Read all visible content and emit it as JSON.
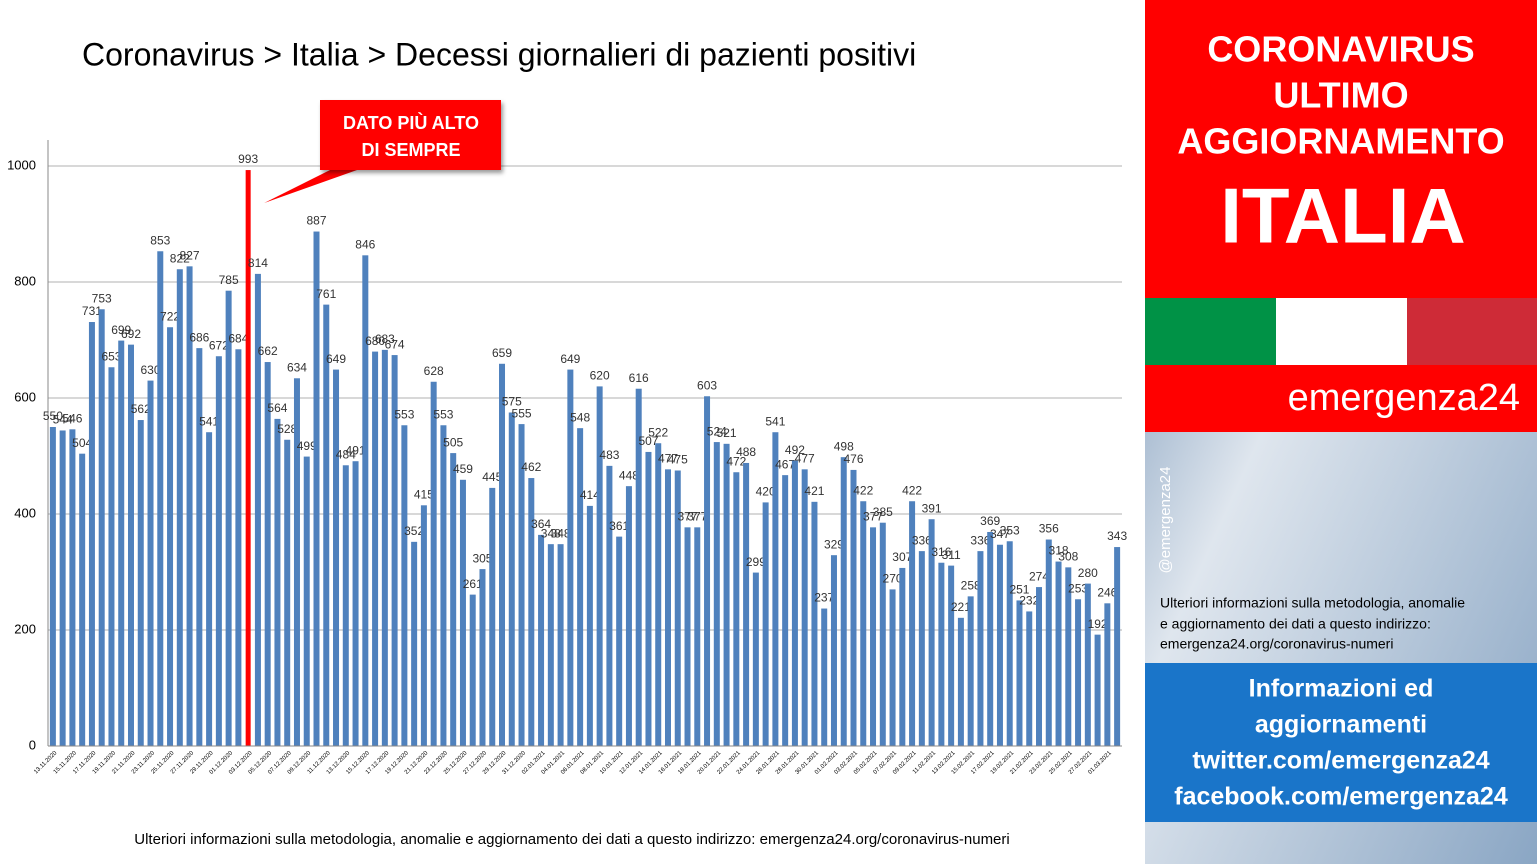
{
  "chart_data": {
    "type": "bar",
    "title": "Coronavirus > Italia > Decessi giornalieri di pazienti positivi",
    "categories": [
      "13.11.2020",
      null,
      "15.11.2020",
      null,
      "17.11.2020",
      null,
      "19.11.2020",
      null,
      "21.11.2020",
      null,
      "23.11.2020",
      null,
      "25.11.2020",
      null,
      "27.11.2020",
      null,
      "29.11.2020",
      null,
      "01.12.2020",
      null,
      "03.12.2020",
      null,
      "05.12.2020",
      null,
      "07.12.2020",
      null,
      "09.12.2020",
      null,
      "11.12.2020",
      null,
      "13.12.2020",
      null,
      "15.12.2020",
      null,
      "17.12.2020",
      null,
      "19.12.2020",
      null,
      "21.12.2020",
      null,
      "23.12.2020",
      null,
      "25.12.2020",
      null,
      "27.12.2020",
      null,
      "29.12.2020",
      null,
      "31.12.2020",
      null,
      "02.01.2021",
      null,
      "04.01.2021",
      null,
      "06.01.2021",
      null,
      "08.01.2021",
      null,
      "10.01.2021",
      null,
      "12.01.2021",
      null,
      "14.01.2021",
      null,
      "16.01.2021",
      null,
      "18.01.2021",
      null,
      "20.01.2021",
      null,
      "22.01.2021",
      null,
      "24.01.2021",
      null,
      "26.01.2021",
      null,
      "28.01.2021",
      null,
      "30.01.2021",
      null,
      "01.02.2021",
      null,
      "03.02.2021",
      null,
      "05.02.2021",
      null,
      "07.02.2021",
      null,
      "09.02.2021",
      null,
      "11.02.2021",
      null,
      "13.02.2021",
      null,
      "15.02.2021",
      null,
      "17.02.2021",
      null,
      "19.02.2021",
      null,
      "21.02.2021",
      null,
      "23.02.2021",
      null,
      "25.02.2021",
      null,
      "27.02.2021",
      null,
      "01.03.2021",
      null
    ],
    "values": [
      550,
      544,
      546,
      504,
      731,
      753,
      653,
      699,
      692,
      562,
      630,
      853,
      722,
      822,
      827,
      686,
      541,
      672,
      785,
      684,
      993,
      814,
      662,
      564,
      528,
      634,
      499,
      887,
      761,
      649,
      484,
      491,
      846,
      680,
      683,
      674,
      553,
      352,
      415,
      628,
      553,
      505,
      459,
      261,
      305,
      445,
      659,
      575,
      555,
      462,
      364,
      348,
      348,
      649,
      548,
      414,
      620,
      483,
      361,
      448,
      616,
      507,
      522,
      477,
      475,
      377,
      377,
      603,
      524,
      521,
      472,
      488,
      299,
      420,
      541,
      467,
      492,
      477,
      421,
      237,
      329,
      498,
      476,
      422,
      377,
      385,
      270,
      307,
      422,
      336,
      391,
      316,
      311,
      221,
      258,
      336,
      369,
      347,
      353,
      251,
      232,
      274,
      356,
      318,
      308,
      253,
      280,
      192,
      246,
      343
    ],
    "color": "#4f81bd",
    "highlight_color": "#ff0000",
    "annotation": [
      "DATO PIÙ ALTO",
      "DI SEMPRE"
    ],
    "ylim": [
      0,
      1000
    ],
    "yticks": [
      0,
      200,
      400,
      600,
      800,
      1000
    ],
    "grid": true,
    "footer": "Ulteriori informazioni sulla metodologia, anomalie e aggiornamento dei dati a questo indirizzo: emergenza24.org/coronavirus-numeri"
  },
  "sidebar": {
    "headline": [
      "CORONAVIRUS",
      "ULTIMO",
      "AGGIORNAMENTO"
    ],
    "country": "ITALIA",
    "brand": "emergenza24",
    "handle": "@emergenza24",
    "info": [
      "Ulteriori informazioni sulla metodologia, anomalie",
      "e aggiornamento dei dati a questo indirizzo:",
      "emergenza24.org/coronavirus-numeri"
    ],
    "social": [
      "Informazioni ed",
      "aggiornamenti",
      "twitter.com/emergenza24",
      "facebook.com/emergenza24"
    ]
  }
}
